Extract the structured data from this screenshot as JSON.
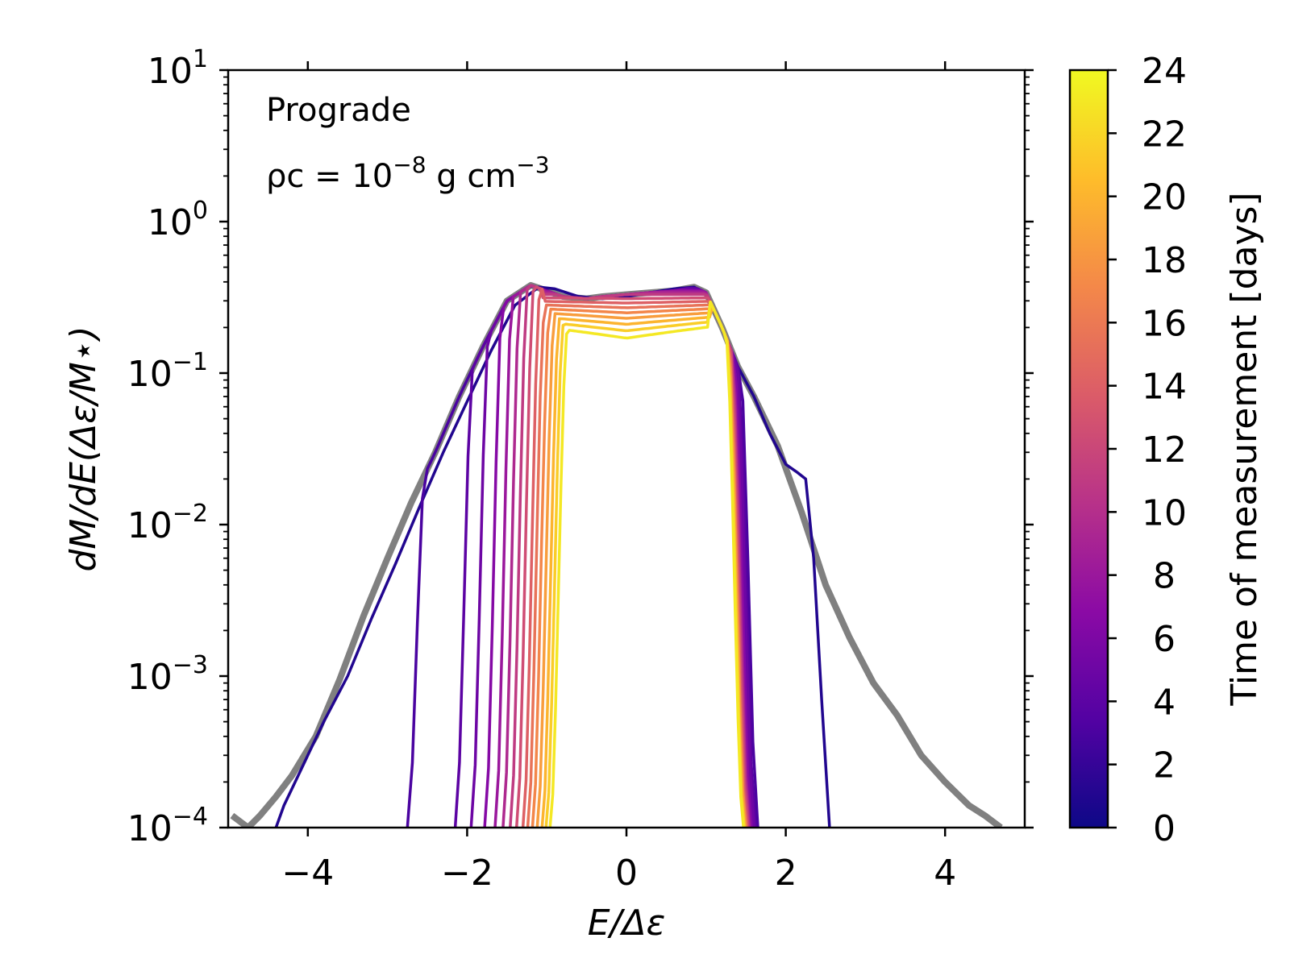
{
  "chart_data": {
    "type": "line",
    "xlabel": "E/Δε",
    "ylabel": "dM/dE(Δε/M⋆)",
    "xlim": [
      -5.0,
      5.0
    ],
    "ylim": [
      0.0001,
      10
    ],
    "yscale": "log",
    "grid": false,
    "x_ticks": [
      "−4",
      "−2",
      "0",
      "2",
      "4"
    ],
    "x_tick_values": [
      -4,
      -2,
      0,
      2,
      4
    ],
    "y_tick_exponents": [
      "−4",
      "−3",
      "−2",
      "−1",
      "0",
      "1"
    ],
    "y_tick_values": [
      -4,
      -3,
      -2,
      -1,
      0,
      1
    ],
    "annotations": {
      "line1": "Prograde",
      "line2_main": "ρc = 10",
      "line2_exp": "−8",
      "line2_unit": " g cm",
      "line2_unit_exp": "−3"
    },
    "colorbar": {
      "label": "Time of measurement [days]",
      "range": [
        0,
        24
      ],
      "tick_labels": [
        "0",
        "2",
        "4",
        "6",
        "8",
        "10",
        "12",
        "14",
        "16",
        "18",
        "20",
        "22",
        "24"
      ],
      "colormap": "plasma",
      "colormap_stops": [
        "#0d0887",
        "#5302a3",
        "#8b0aa5",
        "#b83289",
        "#db5c68",
        "#f48849",
        "#febd2a",
        "#f0f921"
      ]
    },
    "reference_series": {
      "color": "#808080",
      "x": [
        -4.95,
        -4.75,
        -4.6,
        -4.4,
        -4.2,
        -3.9,
        -3.6,
        -3.3,
        -3.0,
        -2.7,
        -2.4,
        -2.1,
        -1.8,
        -1.5,
        -1.2,
        -1.0,
        -0.8,
        -0.5,
        -0.3,
        0.0,
        0.3,
        0.6,
        0.85,
        1.0,
        1.2,
        1.4,
        1.6,
        1.9,
        2.2,
        2.5,
        2.8,
        3.1,
        3.4,
        3.7,
        4.0,
        4.3,
        4.5,
        4.7
      ],
      "y": [
        0.00012,
        0.0001,
        0.00012,
        0.00016,
        0.00022,
        0.0004,
        0.00095,
        0.0025,
        0.006,
        0.014,
        0.03,
        0.07,
        0.15,
        0.3,
        0.38,
        0.35,
        0.32,
        0.31,
        0.32,
        0.33,
        0.34,
        0.35,
        0.37,
        0.34,
        0.2,
        0.11,
        0.07,
        0.033,
        0.012,
        0.004,
        0.0018,
        0.0009,
        0.00055,
        0.0003,
        0.0002,
        0.00014,
        0.00012,
        0.0001
      ]
    },
    "series": [
      {
        "t": 1,
        "x": [
          -4.4,
          -4.3,
          -4.2,
          -4.0,
          -3.8,
          -3.5,
          -3.2,
          -2.9,
          -2.6,
          -2.3,
          -2.0,
          -1.7,
          -1.4,
          -1.1,
          -0.9,
          -0.6,
          -0.3,
          0.0,
          0.3,
          0.6,
          0.85,
          1.0,
          1.2,
          1.4,
          1.6,
          1.8,
          2.0,
          2.15,
          2.25,
          2.35,
          2.45,
          2.55
        ],
        "y": [
          0.0001,
          0.00014,
          0.00018,
          0.0003,
          0.0005,
          0.001,
          0.0024,
          0.0055,
          0.013,
          0.03,
          0.065,
          0.14,
          0.28,
          0.37,
          0.36,
          0.32,
          0.31,
          0.32,
          0.34,
          0.36,
          0.37,
          0.33,
          0.2,
          0.11,
          0.07,
          0.04,
          0.025,
          0.022,
          0.02,
          0.006,
          0.0007,
          0.0001
        ]
      },
      {
        "t": 3,
        "lo": -2.75,
        "hi": 1.65,
        "peak": 0.37
      },
      {
        "t": 4,
        "lo": -2.15,
        "hi": 1.62,
        "peak": 0.37
      },
      {
        "t": 5,
        "lo": -1.95,
        "hi": 1.6,
        "peak": 0.36
      },
      {
        "t": 6.5,
        "lo": -1.78,
        "hi": 1.57,
        "peak": 0.355
      },
      {
        "t": 8,
        "lo": -1.65,
        "hi": 1.55,
        "peak": 0.35
      },
      {
        "t": 9.5,
        "lo": -1.55,
        "hi": 1.54,
        "peak": 0.34
      },
      {
        "t": 11,
        "lo": -1.46,
        "hi": 1.53,
        "peak": 0.33
      },
      {
        "t": 12.5,
        "lo": -1.38,
        "hi": 1.52,
        "peak": 0.31
      },
      {
        "t": 14,
        "lo": -1.3,
        "hi": 1.51,
        "peak": 0.29
      },
      {
        "t": 15.5,
        "lo": -1.24,
        "hi": 1.5,
        "peak": 0.27
      },
      {
        "t": 17,
        "lo": -1.18,
        "hi": 1.5,
        "peak": 0.25
      },
      {
        "t": 18.5,
        "lo": -1.12,
        "hi": 1.49,
        "peak": 0.23
      },
      {
        "t": 20,
        "lo": -1.06,
        "hi": 1.48,
        "peak": 0.21
      },
      {
        "t": 21.5,
        "lo": -1.01,
        "hi": 1.48,
        "peak": 0.19
      },
      {
        "t": 23,
        "lo": -0.96,
        "hi": 1.47,
        "peak": 0.17
      }
    ]
  }
}
